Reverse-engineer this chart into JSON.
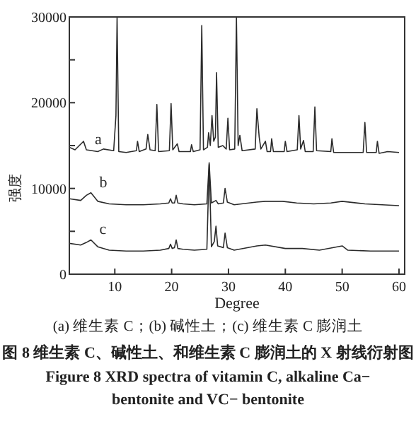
{
  "chart_data": {
    "type": "line",
    "xlabel": "Degree",
    "ylabel": "强度",
    "xlim": [
      2,
      61
    ],
    "xticks": [
      10,
      20,
      30,
      40,
      50,
      60
    ],
    "ylim": [
      0,
      30000
    ],
    "yticks": [
      0,
      {
        "value": 5000,
        "label": null
      },
      10000,
      {
        "value": 15000,
        "label": null
      },
      20000,
      {
        "value": 25000,
        "label": null
      },
      30000
    ],
    "grid": false,
    "series": [
      {
        "name": "a",
        "color": "#2b2b2b",
        "x": [
          2,
          3,
          4.5,
          5,
          7,
          8,
          9.8,
          10.2,
          10.4,
          10.7,
          12,
          13.8,
          14,
          14.3,
          15.5,
          15.8,
          16.2,
          17.1,
          17.4,
          17.7,
          19.6,
          19.9,
          20.2,
          21,
          21.3,
          23.3,
          23.5,
          23.8,
          25,
          25.3,
          25.6,
          26.3,
          26.5,
          26.8,
          27.1,
          27.4,
          27.7,
          27.9,
          28.2,
          29,
          29.6,
          29.9,
          30.2,
          31.1,
          31.4,
          31.7,
          32,
          32.4,
          34.7,
          35,
          35.4,
          35.7,
          36.5,
          36.8,
          37.4,
          37.6,
          37.9,
          39.8,
          40,
          40.3,
          42.1,
          42.4,
          42.7,
          43.2,
          43.5,
          44.9,
          45.2,
          45.5,
          48,
          48.2,
          48.5,
          53.7,
          54,
          54.3,
          56,
          56.2,
          56.5,
          58,
          60
        ],
        "values": [
          14800,
          14500,
          15500,
          14500,
          14300,
          14600,
          14400,
          18500,
          30000,
          14300,
          14200,
          14400,
          15500,
          14300,
          14600,
          16300,
          14500,
          14400,
          19800,
          14300,
          14400,
          19900,
          14500,
          15200,
          14300,
          14300,
          15100,
          14300,
          14500,
          29000,
          14500,
          14800,
          16500,
          15000,
          18500,
          15500,
          16000,
          23500,
          14800,
          15000,
          14600,
          18200,
          14500,
          14600,
          30000,
          15000,
          16200,
          14400,
          14600,
          19300,
          16000,
          14600,
          15500,
          14300,
          14300,
          15800,
          14300,
          14300,
          15500,
          14300,
          14500,
          18500,
          14600,
          15600,
          14300,
          14300,
          19500,
          14400,
          14300,
          15800,
          14200,
          14200,
          17700,
          14200,
          14200,
          15500,
          14100,
          14300,
          14200
        ]
      },
      {
        "name": "b",
        "color": "#2b2b2b",
        "x": [
          2,
          4,
          5,
          5.8,
          7,
          9,
          12,
          15,
          18,
          19.5,
          19.8,
          20.1,
          20.5,
          20.8,
          21.1,
          22,
          24,
          26.2,
          26.6,
          27,
          27.8,
          28.2,
          29.1,
          29.4,
          29.8,
          31,
          34.9,
          36.5,
          39.5,
          42,
          45,
          48,
          50,
          54,
          57,
          60
        ],
        "values": [
          8800,
          8600,
          9200,
          9500,
          8500,
          8200,
          8100,
          8100,
          8200,
          8300,
          8800,
          8300,
          8300,
          9200,
          8300,
          8200,
          8100,
          8200,
          13000,
          8300,
          8600,
          8200,
          8300,
          10000,
          8400,
          8100,
          8400,
          8500,
          8500,
          8300,
          8200,
          8300,
          8500,
          8200,
          8100,
          8000
        ]
      },
      {
        "name": "c",
        "color": "#2b2b2b",
        "x": [
          2,
          4,
          5,
          5.8,
          7,
          9,
          12,
          15,
          18,
          19.5,
          19.8,
          20.1,
          20.5,
          20.8,
          21.1,
          22,
          24,
          26.2,
          26.6,
          27,
          27.5,
          27.8,
          28.1,
          29.1,
          29.4,
          29.8,
          31,
          35,
          36.5,
          40,
          43,
          46,
          50,
          51,
          55,
          60
        ],
        "values": [
          3600,
          3400,
          3700,
          4000,
          3200,
          2800,
          2700,
          2700,
          2800,
          3000,
          3500,
          3000,
          3100,
          4000,
          3000,
          2900,
          2800,
          2900,
          12800,
          3200,
          3800,
          5600,
          3300,
          3100,
          4800,
          3100,
          2800,
          3300,
          3400,
          3000,
          3000,
          2800,
          3300,
          2800,
          2700,
          2700
        ]
      }
    ],
    "annotations": [
      "(a) 维生素 C；(b) 碱性土；(c) 维生素 C 膨润土",
      "图 8   维生素 C、碱性土、和维生素 C 膨润土的 X 射线衍射图",
      "Figure 8    XRD spectra of vitamin C, alkaline Ca− bentonite and VC− bentonite"
    ]
  }
}
